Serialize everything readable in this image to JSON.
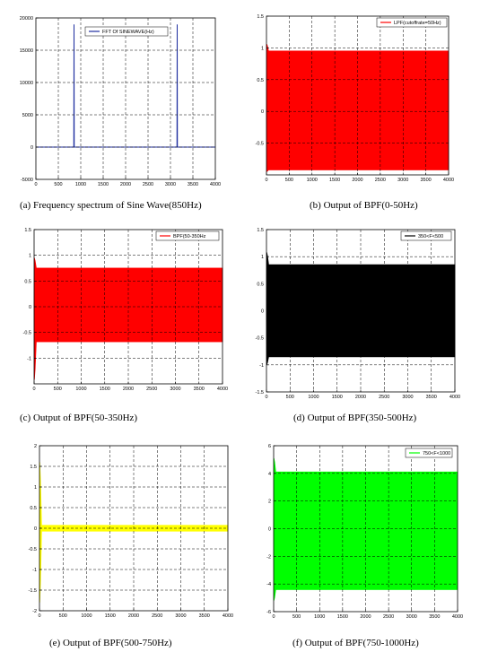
{
  "chart_data": [
    {
      "type": "line",
      "caption": "(a) Frequency spectrum of Sine Wave(850Hz)",
      "xlim": [
        0,
        4000
      ],
      "ylim": [
        -5000,
        20000
      ],
      "x_ticks": [
        0,
        500,
        1000,
        1500,
        2000,
        2500,
        3000,
        3500,
        4000
      ],
      "y_ticks": [
        -5000,
        0,
        5000,
        10000,
        15000,
        20000
      ],
      "x_tick_labels": [
        "0",
        "500",
        "1000",
        "1500",
        "2000",
        "2500",
        "3000",
        "3500",
        "4000"
      ],
      "y_tick_labels": [
        "-5000",
        "0",
        "5000",
        "10000",
        "15000",
        "20000"
      ],
      "grid": true,
      "legend_position": "top-right",
      "series": [
        {
          "name": "FFT Of SINEWAVE(Hz)",
          "color": "#1f2fa0",
          "points": [
            [
              0,
              0
            ],
            [
              845,
              0
            ],
            [
              850,
              19000
            ],
            [
              855,
              0
            ],
            [
              3145,
              0
            ],
            [
              3150,
              19000
            ],
            [
              3155,
              0
            ],
            [
              4000,
              0
            ]
          ]
        }
      ]
    },
    {
      "type": "area",
      "caption": "(b) Output of BPF(0-50Hz)",
      "xlim": [
        0,
        4000
      ],
      "ylim": [
        -1.0,
        1.5
      ],
      "x_ticks": [
        0,
        500,
        1000,
        1500,
        2000,
        2500,
        3000,
        3500,
        4000
      ],
      "y_ticks": [
        -0.5,
        0,
        0.5,
        1,
        1.5
      ],
      "x_tick_labels": [
        "0",
        "500",
        "1000",
        "1500",
        "2000",
        "2500",
        "3000",
        "3500",
        "4000"
      ],
      "y_tick_labels": [
        "-0.5",
        "0",
        "0.5",
        "1",
        "1.5"
      ],
      "grid": true,
      "legend_position": "top-right",
      "series": [
        {
          "name": "LPF(cutoffrate=50Hz)",
          "color": "#ff0000",
          "envelope_upper": 0.95,
          "envelope_lower": -0.92,
          "transient_peak_upper": 1.06,
          "transient_peak_lower": -0.95,
          "x_start": 0,
          "x_end": 4000
        }
      ]
    },
    {
      "type": "area",
      "caption": "(c) Output of BPF(50-350Hz)",
      "xlim": [
        0,
        4000
      ],
      "ylim": [
        -1.5,
        1.5
      ],
      "x_ticks": [
        0,
        500,
        1000,
        1500,
        2000,
        2500,
        3000,
        3500,
        4000
      ],
      "y_ticks": [
        -1,
        -0.5,
        0,
        0.5,
        1,
        1.5
      ],
      "x_tick_labels": [
        "0",
        "500",
        "1000",
        "1500",
        "2000",
        "2500",
        "3000",
        "3500",
        "4000"
      ],
      "y_tick_labels": [
        "-1",
        "-0.5",
        "0",
        "0.5",
        "1",
        "1.5"
      ],
      "grid": true,
      "legend_position": "top-right",
      "series": [
        {
          "name": "BPF(50-350Hz",
          "color": "#ff0000",
          "envelope_upper": 0.75,
          "envelope_lower": -0.68,
          "transient_peak_upper": 0.95,
          "transient_peak_lower": -1.42,
          "x_start": 0,
          "x_end": 4000
        }
      ]
    },
    {
      "type": "area",
      "caption": "(d) Output of BPF(350-500Hz)",
      "xlim": [
        0,
        4000
      ],
      "ylim": [
        -1.5,
        1.5
      ],
      "x_ticks": [
        0,
        500,
        1000,
        1500,
        2000,
        2500,
        3000,
        3500,
        4000
      ],
      "y_ticks": [
        -1.5,
        -1,
        -0.5,
        0,
        0.5,
        1,
        1.5
      ],
      "x_tick_labels": [
        "0",
        "500",
        "1000",
        "1500",
        "2000",
        "2500",
        "3000",
        "3500",
        "4000"
      ],
      "y_tick_labels": [
        "-1.5",
        "-1",
        "-0.5",
        "0",
        "0.5",
        "1",
        "1.5"
      ],
      "grid": true,
      "legend_position": "top-right",
      "series": [
        {
          "name": "350<F<500",
          "color": "#000000",
          "envelope_upper": 0.85,
          "envelope_lower": -0.85,
          "transient_peak_upper": 1.08,
          "transient_peak_lower": -1.0,
          "x_start": 0,
          "x_end": 4000
        }
      ]
    },
    {
      "type": "area",
      "caption": "(e) Output of BPF(500-750Hz)",
      "xlim": [
        0,
        4000
      ],
      "ylim": [
        -2,
        2
      ],
      "x_ticks": [
        0,
        500,
        1000,
        1500,
        2000,
        2500,
        3000,
        3500,
        4000
      ],
      "y_ticks": [
        -2,
        -1.5,
        -1,
        -0.5,
        0,
        0.5,
        1,
        1.5,
        2
      ],
      "x_tick_labels": [
        "0",
        "500",
        "1000",
        "1500",
        "2000",
        "2500",
        "3000",
        "3500",
        "4000"
      ],
      "y_tick_labels": [
        "-2",
        "-1.5",
        "-1",
        "-0.5",
        "0",
        "0.5",
        "1",
        "1.5",
        "2"
      ],
      "grid": true,
      "legend_position": "top-right",
      "series": [
        {
          "name": "500<F<750",
          "color": "#ffff00",
          "envelope_upper": 0.07,
          "envelope_lower": -0.07,
          "transient_peak_upper": 1.6,
          "transient_peak_lower": -1.8,
          "x_start": 0,
          "x_end": 4000
        }
      ]
    },
    {
      "type": "area",
      "caption": "(f) Output of BPF(750-1000Hz)",
      "xlim": [
        0,
        4000
      ],
      "ylim": [
        -6,
        6
      ],
      "x_ticks": [
        0,
        500,
        1000,
        1500,
        2000,
        2500,
        3000,
        3500,
        4000
      ],
      "y_ticks": [
        -6,
        -4,
        -2,
        0,
        2,
        4,
        6
      ],
      "x_tick_labels": [
        "0",
        "500",
        "1000",
        "1500",
        "2000",
        "2500",
        "3000",
        "3500",
        "4000"
      ],
      "y_tick_labels": [
        "-6",
        "-4",
        "-2",
        "0",
        "2",
        "4",
        "6"
      ],
      "grid": true,
      "legend_position": "top-right",
      "series": [
        {
          "name": "750<F<1000",
          "color": "#00ff00",
          "envelope_upper": 4.1,
          "envelope_lower": -4.4,
          "transient_peak_upper": 5.1,
          "transient_peak_lower": -5.2,
          "x_start": 0,
          "x_end": 4000
        }
      ]
    }
  ]
}
